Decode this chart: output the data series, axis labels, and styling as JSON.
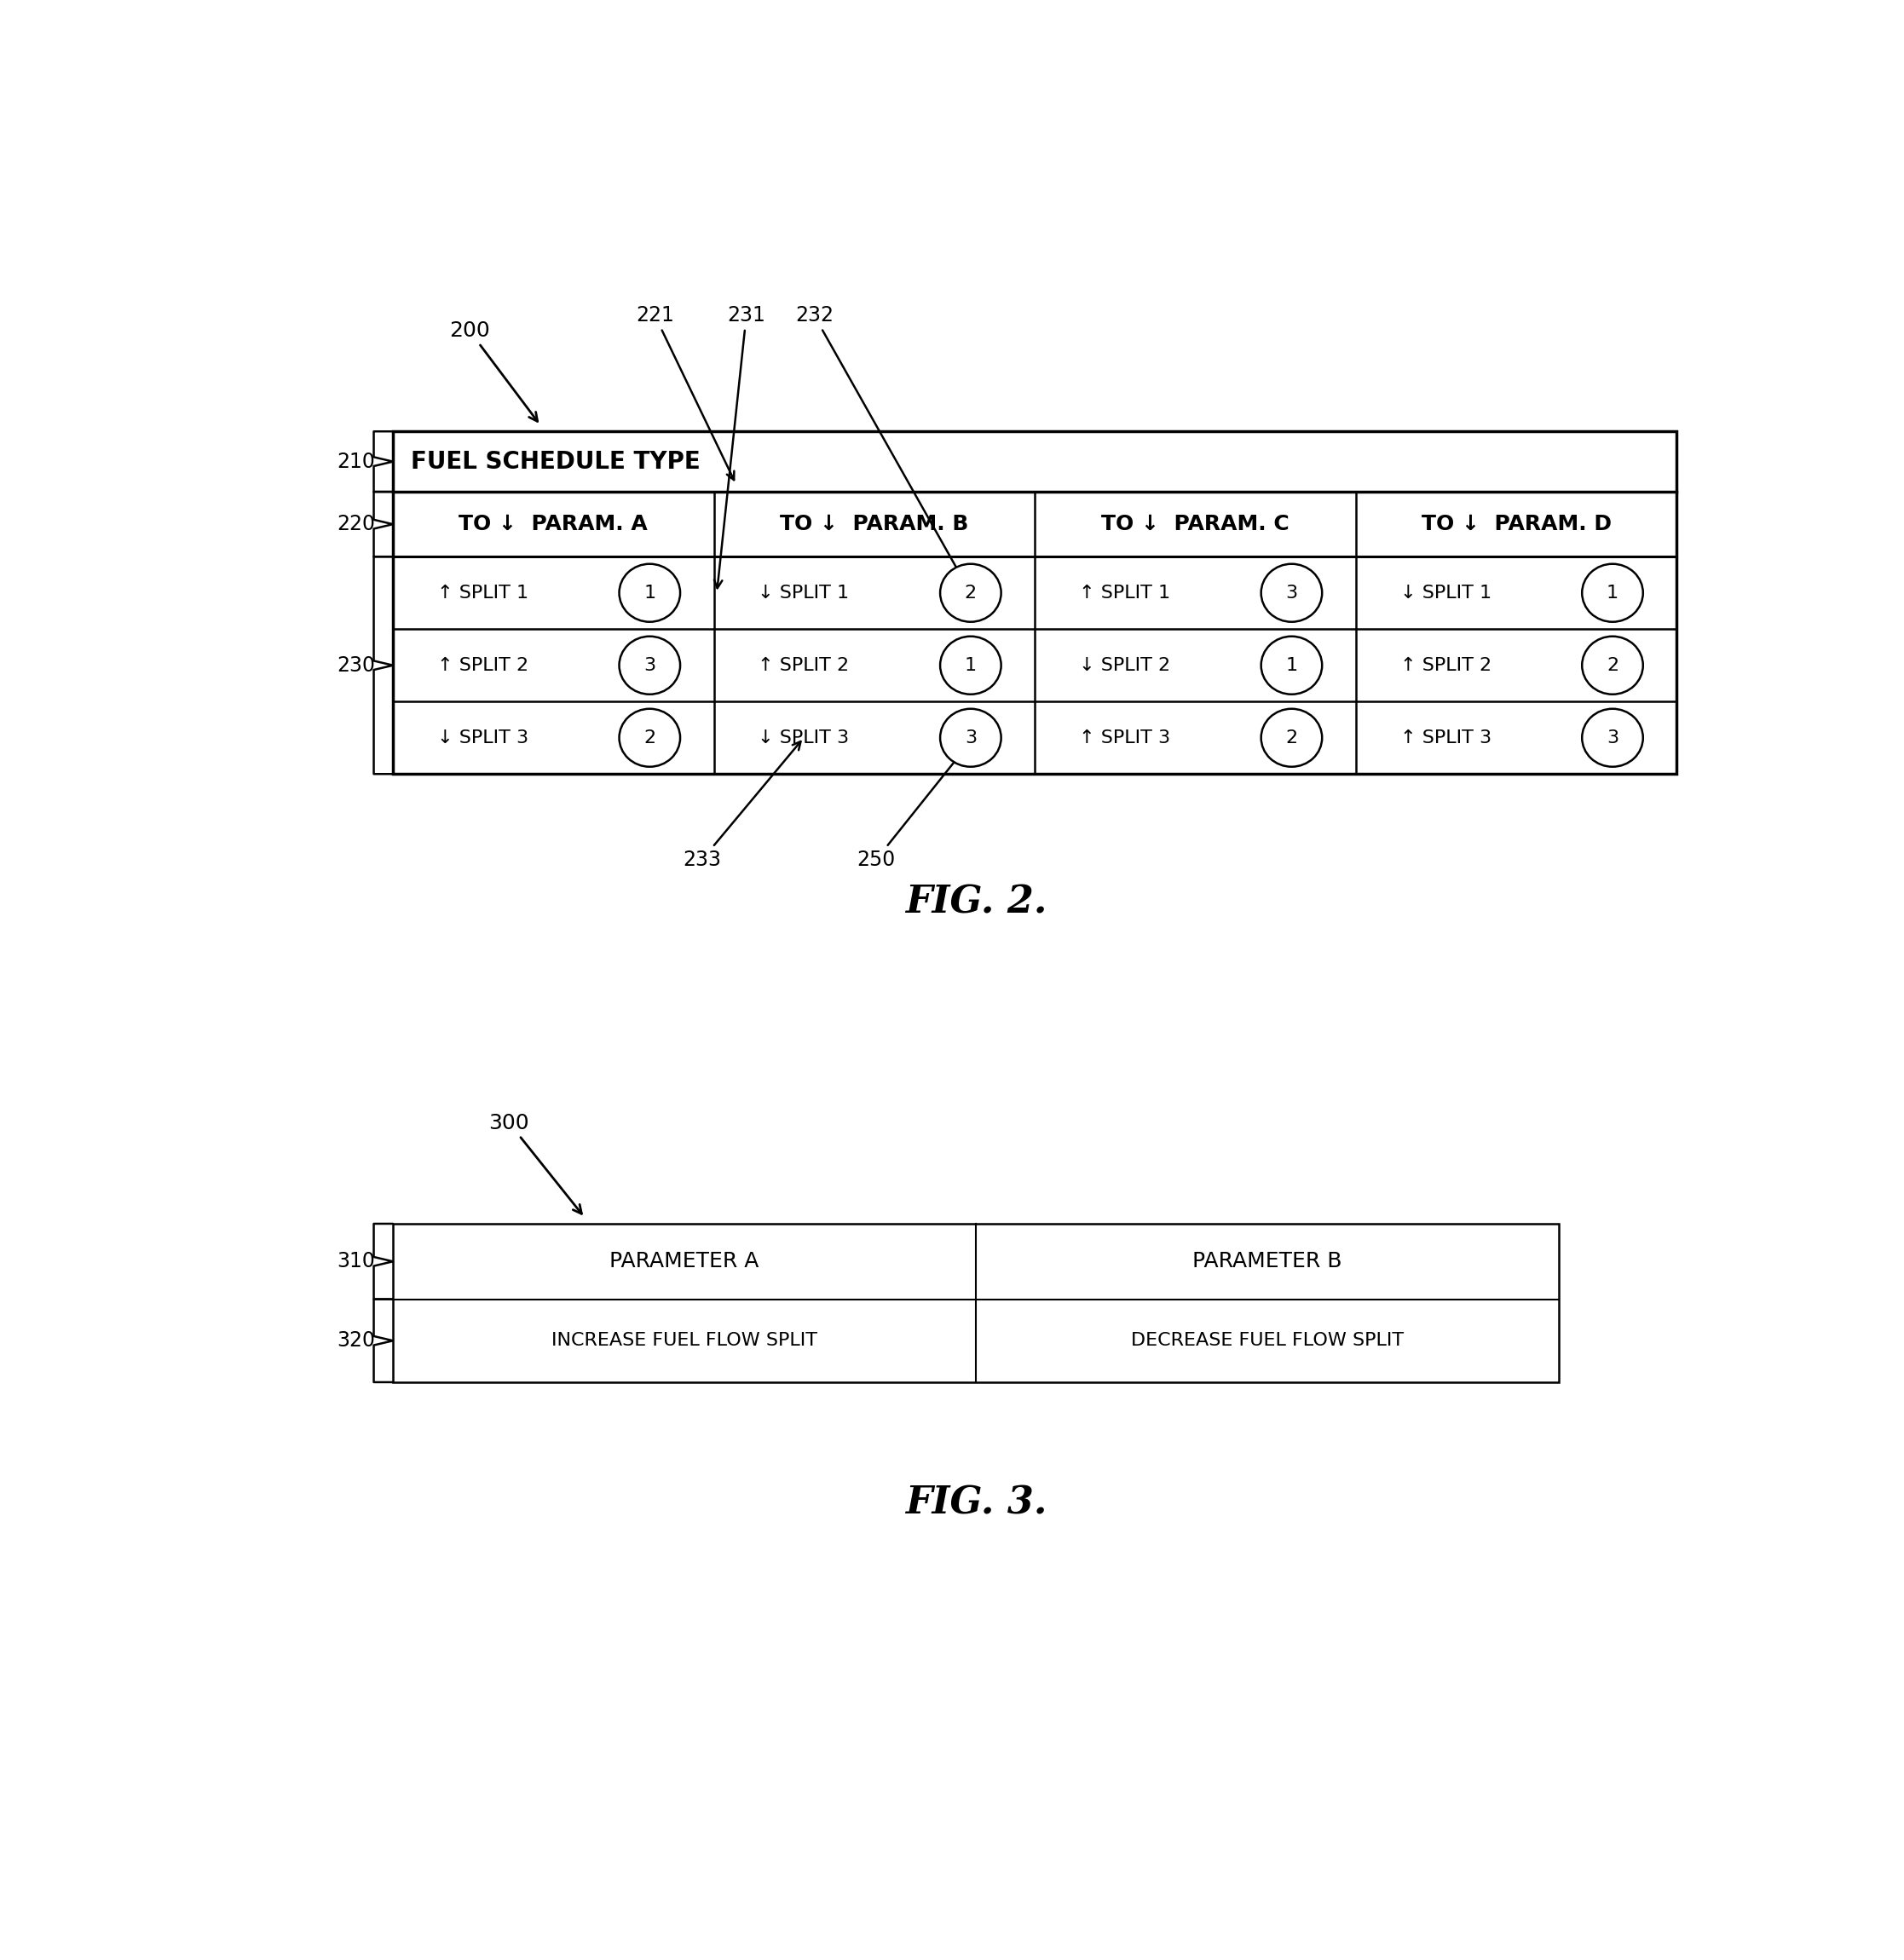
{
  "fig_width": 22.34,
  "fig_height": 23.0,
  "bg_color": "#ffffff",
  "fig2": {
    "title": "FIG. 2.",
    "label": "200",
    "header_text": "FUEL SCHEDULE TYPE",
    "col_labels": [
      "TO ↓  PARAM. A",
      "TO ↓  PARAM. B",
      "TO ↓  PARAM. C",
      "TO ↓  PARAM. D"
    ],
    "data": [
      [
        "↑ SPLIT 1",
        "1",
        "↓ SPLIT 1",
        "2",
        "↑ SPLIT 1",
        "3",
        "↓ SPLIT 1",
        "1"
      ],
      [
        "↑ SPLIT 2",
        "3",
        "↑ SPLIT 2",
        "1",
        "↓ SPLIT 2",
        "1",
        "↑ SPLIT 2",
        "2"
      ],
      [
        "↓ SPLIT 3",
        "2",
        "↓ SPLIT 3",
        "3",
        "↑ SPLIT 3",
        "2",
        "↑ SPLIT 3",
        "3"
      ]
    ]
  },
  "fig3": {
    "title": "FIG. 3.",
    "label": "300",
    "col_headers": [
      "PARAMETER A",
      "PARAMETER B"
    ],
    "row_data": [
      "INCREASE FUEL FLOW SPLIT",
      "DECREASE FUEL FLOW SPLIT"
    ]
  }
}
